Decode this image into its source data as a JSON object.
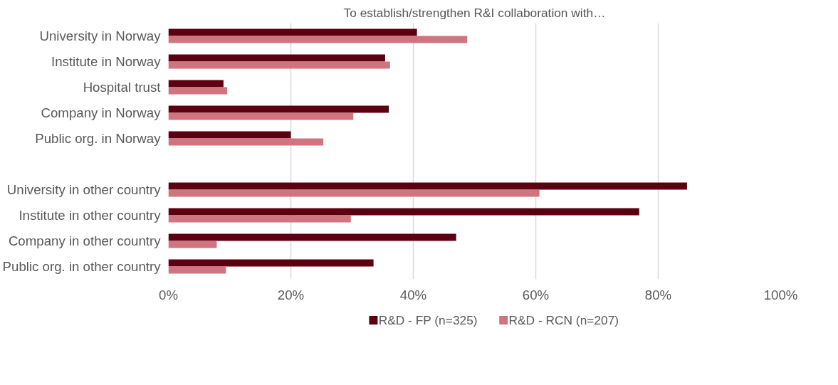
{
  "chart_data": {
    "type": "bar",
    "orientation": "horizontal",
    "title": "To establish/strengthen R&I collaboration with…",
    "categories": [
      "University in Norway",
      "Institute in Norway",
      "Hospital trust",
      "Company in Norway",
      "Public org. in Norway",
      null,
      "University in other country",
      "Institute in other country",
      "Company in other country",
      "Public org. in other country"
    ],
    "series": [
      {
        "name": "R&D - FP (n=325)",
        "color": "#5c0011",
        "values": [
          40.6,
          35.4,
          9.0,
          36.0,
          20.0,
          null,
          84.7,
          76.9,
          47.0,
          33.5
        ]
      },
      {
        "name": "R&D - RCN (n=207)",
        "color": "#d07480",
        "values": [
          48.8,
          36.2,
          9.6,
          30.2,
          25.3,
          null,
          60.6,
          29.8,
          7.9,
          9.4
        ]
      }
    ],
    "xlim": [
      0,
      100
    ],
    "xticks": [
      {
        "value": 0,
        "label": "0%"
      },
      {
        "value": 20,
        "label": "20%"
      },
      {
        "value": 40,
        "label": "40%"
      },
      {
        "value": 60,
        "label": "60%"
      },
      {
        "value": 80,
        "label": "80%"
      },
      {
        "value": 100,
        "label": "100%"
      }
    ],
    "grid": "x",
    "legend": "bottom"
  }
}
